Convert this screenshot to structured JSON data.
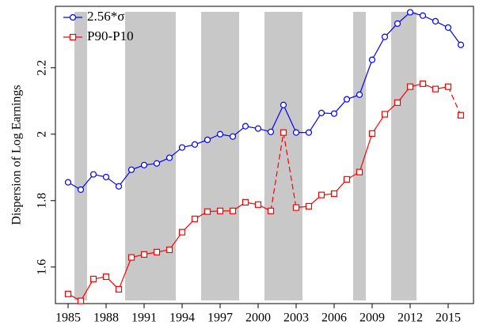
{
  "chart_data": {
    "type": "line",
    "y_label": "Dispersion of Log Earnings",
    "x": [
      1985,
      1986,
      1987,
      1988,
      1989,
      1990,
      1991,
      1992,
      1993,
      1994,
      1995,
      1996,
      1997,
      1998,
      1999,
      2000,
      2001,
      2002,
      2003,
      2004,
      2005,
      2006,
      2007,
      2008,
      2009,
      2010,
      2011,
      2012,
      2013,
      2014,
      2015,
      2016
    ],
    "series": [
      {
        "name": "2.56*σ",
        "color": "#0000ff",
        "marker": "circle",
        "values": [
          1.855,
          1.833,
          1.879,
          1.871,
          1.843,
          1.893,
          1.907,
          1.912,
          1.929,
          1.96,
          1.969,
          1.983,
          2.0,
          1.993,
          2.024,
          2.017,
          2.007,
          2.088,
          2.005,
          2.005,
          2.064,
          2.062,
          2.105,
          2.119,
          2.224,
          2.293,
          2.333,
          2.367,
          2.357,
          2.34,
          2.321,
          2.269
        ],
        "dashed_segments": []
      },
      {
        "name": "P90-P10",
        "color": "#ff0000",
        "marker": "square",
        "values": [
          1.519,
          1.498,
          1.564,
          1.571,
          1.533,
          1.629,
          1.638,
          1.645,
          1.652,
          1.705,
          1.745,
          1.767,
          1.769,
          1.769,
          1.795,
          1.788,
          1.769,
          2.005,
          1.779,
          1.783,
          1.817,
          1.821,
          1.864,
          1.886,
          2.002,
          2.06,
          2.095,
          2.143,
          2.152,
          2.136,
          2.143,
          2.057
        ],
        "dashed_segments": [
          [
            2001,
            2002
          ],
          [
            2002,
            2003
          ],
          [
            2015,
            2016
          ]
        ]
      }
    ],
    "shaded_regions": [
      [
        1985.5,
        1986.5
      ],
      [
        1989.5,
        1993.5
      ],
      [
        1995.5,
        1998.5
      ],
      [
        2000.5,
        2003.5
      ],
      [
        2007.5,
        2008.5
      ],
      [
        2010.5,
        2012.5
      ]
    ],
    "shade_color": "#c8c8c8",
    "xlim": [
      1984,
      2017
    ],
    "xticks": [
      1985,
      1988,
      1991,
      1994,
      1997,
      2000,
      2003,
      2006,
      2009,
      2012,
      2015
    ],
    "ylim": [
      1.49,
      2.385
    ],
    "yticks": [
      1.6,
      1.8,
      2,
      2.2
    ],
    "legend": "upper-left"
  }
}
